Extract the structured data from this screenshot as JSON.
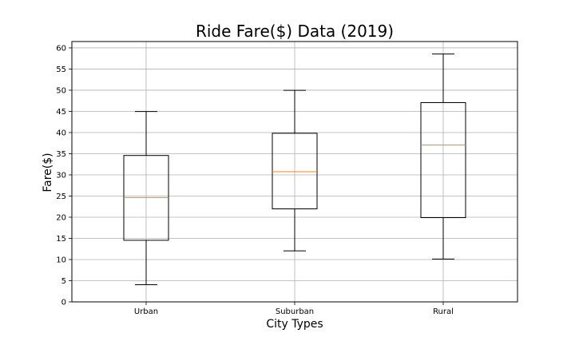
{
  "chart_data": {
    "type": "box",
    "title": "Ride Fare($) Data (2019)",
    "xlabel": "City Types",
    "ylabel": "Fare($)",
    "categories": [
      "Urban",
      "Suburban",
      "Rural"
    ],
    "boxes": [
      {
        "name": "Urban",
        "whisker_low": 4.05,
        "q1": 14.55,
        "median": 24.64,
        "q3": 34.58,
        "whisker_high": 44.97
      },
      {
        "name": "Suburban",
        "whisker_low": 12.05,
        "q1": 21.97,
        "median": 30.75,
        "q3": 39.83,
        "whisker_high": 49.96
      },
      {
        "name": "Rural",
        "whisker_low": 10.11,
        "q1": 19.9,
        "median": 37.05,
        "q3": 47.07,
        "whisker_high": 58.55
      }
    ],
    "ylim": [
      0,
      61.5
    ],
    "yticks": [
      0,
      5,
      10,
      15,
      20,
      25,
      30,
      35,
      40,
      45,
      50,
      55,
      60
    ],
    "grid": true,
    "legend": "none",
    "colors": {
      "box": "#000000",
      "median": "#ff7f0e",
      "grid": "#b0b0b0"
    }
  }
}
